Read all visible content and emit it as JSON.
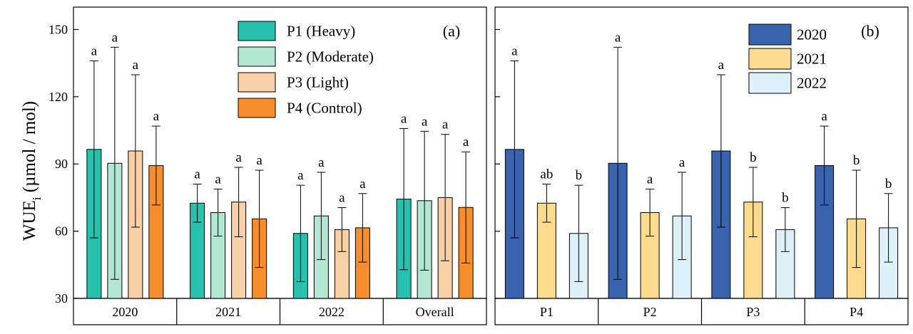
{
  "figure": {
    "y_axis_label": "WUE",
    "y_axis_label_sub": "i",
    "y_axis_label_units": " (µmol / mol)"
  },
  "chart_data": [
    {
      "type": "bar",
      "panel_label": "(a)",
      "ylabel": "WUEi (µmol / mol)",
      "ylim": [
        30,
        160
      ],
      "yticks": [
        30,
        60,
        90,
        120,
        150
      ],
      "categories": [
        "2020",
        "2021",
        "2022",
        "Overall"
      ],
      "legend_position": "top-center",
      "series": [
        {
          "name": "P1 (Heavy)",
          "color": "#27c1ae",
          "values": [
            96.5,
            72.5,
            59,
            74.3
          ],
          "errors": [
            39.5,
            8.5,
            21.5,
            31.5
          ],
          "letters": [
            "a",
            "a",
            "a",
            "a"
          ]
        },
        {
          "name": "P2 (Moderate)",
          "color": "#b2e6d3",
          "values": [
            90.3,
            68.3,
            66.8,
            73.6
          ],
          "errors": [
            51.8,
            10.5,
            19.5,
            31
          ],
          "letters": [
            "a",
            "a",
            "a",
            "a"
          ]
        },
        {
          "name": "P3 (Light)",
          "color": "#f8d0a7",
          "values": [
            95.8,
            73,
            60.7,
            75
          ],
          "errors": [
            34,
            15.5,
            9.8,
            28.2
          ],
          "letters": [
            "a",
            "a",
            "a",
            "a"
          ]
        },
        {
          "name": "P4 (Control)",
          "color": "#f88d2b",
          "values": [
            89.3,
            65.5,
            61.5,
            70.6
          ],
          "errors": [
            17.6,
            21.7,
            15.3,
            24.8
          ],
          "letters": [
            "a",
            "a",
            "a",
            "a"
          ]
        }
      ]
    },
    {
      "type": "bar",
      "panel_label": "(b)",
      "ylabel": "WUEi (µmol / mol)",
      "ylim": [
        30,
        160
      ],
      "yticks": [
        30,
        60,
        90,
        120,
        150
      ],
      "categories": [
        "P1",
        "P2",
        "P3",
        "P4"
      ],
      "legend_position": "top-right",
      "series": [
        {
          "name": "2020",
          "color": "#3a63ad",
          "values": [
            96.5,
            90.3,
            95.8,
            89.3
          ],
          "errors": [
            39.5,
            51.8,
            34,
            17.6
          ],
          "letters": [
            "a",
            "a",
            "a",
            "a"
          ]
        },
        {
          "name": "2021",
          "color": "#fddb8e",
          "values": [
            72.5,
            68.3,
            73,
            65.5
          ],
          "errors": [
            8.5,
            10.5,
            15.5,
            21.7
          ],
          "letters": [
            "ab",
            "a",
            "b",
            "b"
          ]
        },
        {
          "name": "2022",
          "color": "#dff1f8",
          "values": [
            59,
            66.8,
            60.7,
            61.5
          ],
          "errors": [
            21.5,
            19.5,
            9.8,
            15.3
          ],
          "letters": [
            "b",
            "a",
            "b",
            "b"
          ]
        }
      ]
    }
  ]
}
